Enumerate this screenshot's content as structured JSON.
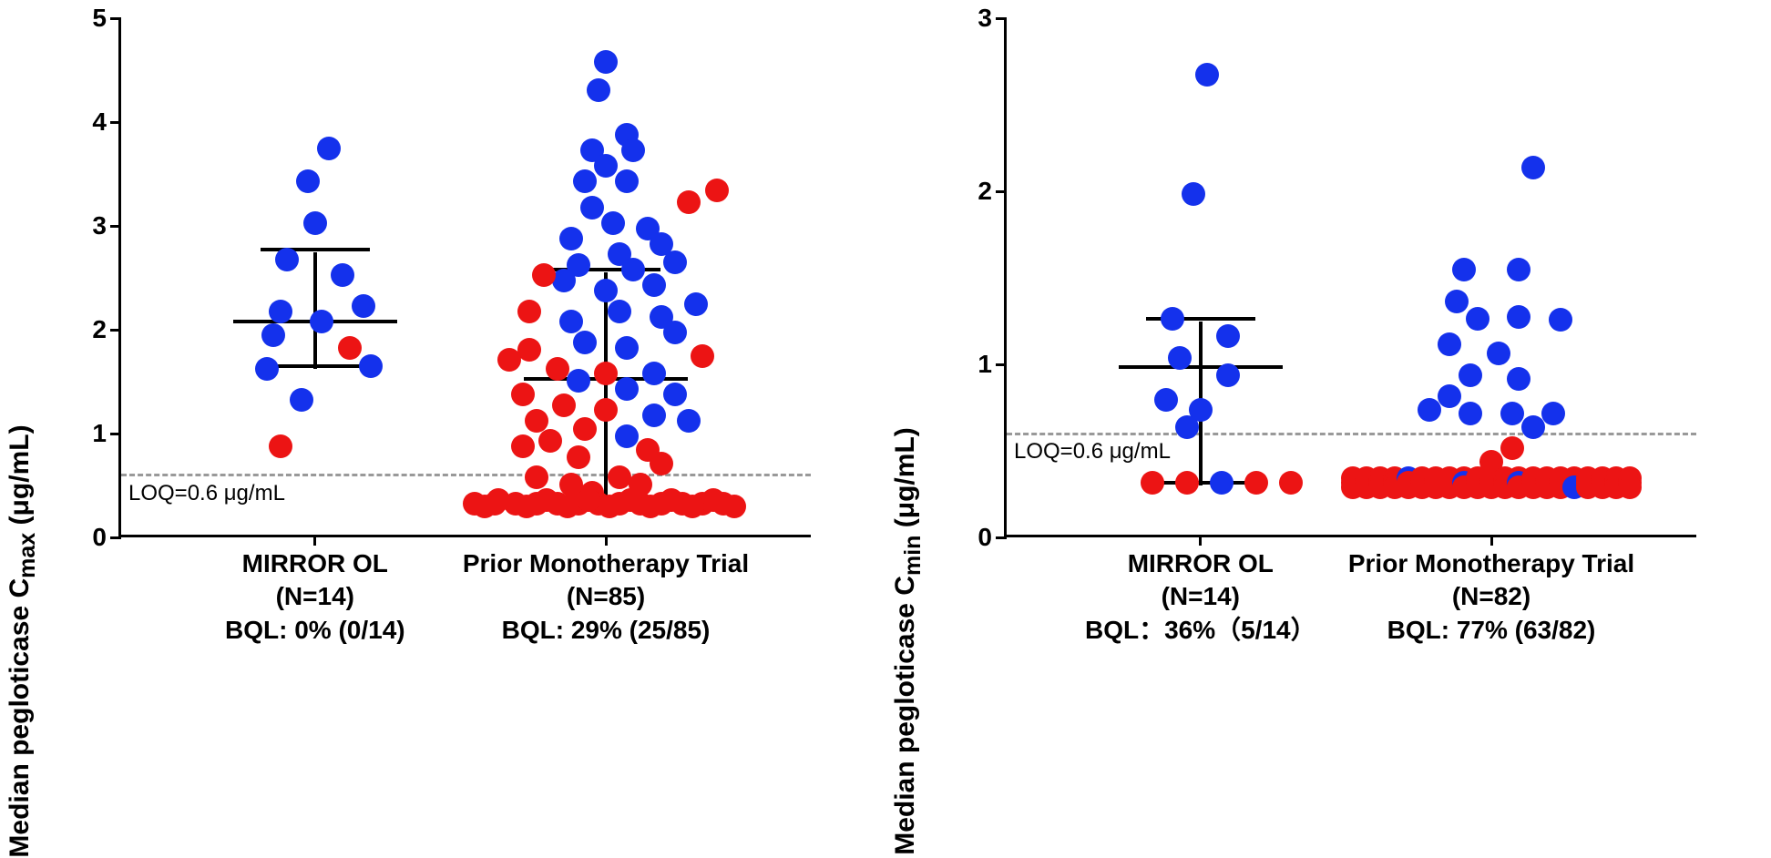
{
  "colors": {
    "blue": "#1431ec",
    "red": "#ec1414",
    "axis": "#000000",
    "loq": "#999999",
    "bg": "#ffffff"
  },
  "marker": {
    "radius": 13,
    "stroke": 0
  },
  "errbar": {
    "cap_width": 120,
    "median_width": 180,
    "line_width": 4
  },
  "left_panel": {
    "ylabel_html": "Median pegloticase C<sub>max</sub> (μg/mL)",
    "ylim": [
      0,
      5
    ],
    "yticks": [
      0,
      1,
      2,
      3,
      4,
      5
    ],
    "loq": {
      "value": 0.6,
      "label": "LOQ=0.6 μg/mL"
    },
    "groups": [
      {
        "x": 0.28,
        "label_lines": [
          "MIRROR OL",
          "(N=14)",
          "BQL: 0% (0/14)"
        ],
        "median": 2.05,
        "q1": 1.62,
        "q3": 2.75,
        "points": [
          {
            "dx": 0.02,
            "y": 3.72,
            "c": "blue"
          },
          {
            "dx": -0.01,
            "y": 3.4,
            "c": "blue"
          },
          {
            "dx": 0.0,
            "y": 3.0,
            "c": "blue"
          },
          {
            "dx": -0.04,
            "y": 2.65,
            "c": "blue"
          },
          {
            "dx": 0.04,
            "y": 2.5,
            "c": "blue"
          },
          {
            "dx": 0.07,
            "y": 2.2,
            "c": "blue"
          },
          {
            "dx": -0.05,
            "y": 2.15,
            "c": "blue"
          },
          {
            "dx": 0.01,
            "y": 2.05,
            "c": "blue"
          },
          {
            "dx": -0.06,
            "y": 1.92,
            "c": "blue"
          },
          {
            "dx": 0.05,
            "y": 1.8,
            "c": "red"
          },
          {
            "dx": 0.08,
            "y": 1.62,
            "c": "blue"
          },
          {
            "dx": -0.07,
            "y": 1.6,
            "c": "blue"
          },
          {
            "dx": -0.02,
            "y": 1.3,
            "c": "blue"
          },
          {
            "dx": -0.05,
            "y": 0.85,
            "c": "red"
          }
        ]
      },
      {
        "x": 0.7,
        "label_lines": [
          "Prior Monotherapy Trial",
          "(N=85)",
          "BQL: 29% (25/85)"
        ],
        "median": 1.5,
        "q1": 0.3,
        "q3": 2.55,
        "points": [
          {
            "dx": 0.0,
            "y": 4.55,
            "c": "blue"
          },
          {
            "dx": -0.01,
            "y": 4.28,
            "c": "blue"
          },
          {
            "dx": 0.03,
            "y": 3.85,
            "c": "blue"
          },
          {
            "dx": -0.02,
            "y": 3.7,
            "c": "blue"
          },
          {
            "dx": 0.04,
            "y": 3.7,
            "c": "blue"
          },
          {
            "dx": 0.0,
            "y": 3.55,
            "c": "blue"
          },
          {
            "dx": -0.03,
            "y": 3.4,
            "c": "blue"
          },
          {
            "dx": 0.03,
            "y": 3.4,
            "c": "blue"
          },
          {
            "dx": 0.16,
            "y": 3.32,
            "c": "red"
          },
          {
            "dx": -0.02,
            "y": 3.15,
            "c": "blue"
          },
          {
            "dx": 0.12,
            "y": 3.2,
            "c": "red"
          },
          {
            "dx": 0.01,
            "y": 3.0,
            "c": "blue"
          },
          {
            "dx": 0.06,
            "y": 2.95,
            "c": "blue"
          },
          {
            "dx": -0.05,
            "y": 2.85,
            "c": "blue"
          },
          {
            "dx": 0.08,
            "y": 2.8,
            "c": "blue"
          },
          {
            "dx": 0.02,
            "y": 2.7,
            "c": "blue"
          },
          {
            "dx": -0.04,
            "y": 2.6,
            "c": "blue"
          },
          {
            "dx": 0.1,
            "y": 2.62,
            "c": "blue"
          },
          {
            "dx": 0.04,
            "y": 2.55,
            "c": "blue"
          },
          {
            "dx": -0.06,
            "y": 2.45,
            "c": "blue"
          },
          {
            "dx": -0.09,
            "y": 2.5,
            "c": "red"
          },
          {
            "dx": 0.07,
            "y": 2.4,
            "c": "blue"
          },
          {
            "dx": 0.0,
            "y": 2.35,
            "c": "blue"
          },
          {
            "dx": -0.11,
            "y": 2.15,
            "c": "red"
          },
          {
            "dx": 0.13,
            "y": 2.22,
            "c": "blue"
          },
          {
            "dx": 0.02,
            "y": 2.15,
            "c": "blue"
          },
          {
            "dx": -0.05,
            "y": 2.05,
            "c": "blue"
          },
          {
            "dx": 0.08,
            "y": 2.1,
            "c": "blue"
          },
          {
            "dx": 0.1,
            "y": 1.95,
            "c": "blue"
          },
          {
            "dx": -0.03,
            "y": 1.85,
            "c": "blue"
          },
          {
            "dx": -0.11,
            "y": 1.78,
            "c": "red"
          },
          {
            "dx": 0.03,
            "y": 1.8,
            "c": "blue"
          },
          {
            "dx": -0.14,
            "y": 1.68,
            "c": "red"
          },
          {
            "dx": 0.14,
            "y": 1.72,
            "c": "red"
          },
          {
            "dx": -0.07,
            "y": 1.6,
            "c": "red"
          },
          {
            "dx": 0.0,
            "y": 1.55,
            "c": "red"
          },
          {
            "dx": 0.07,
            "y": 1.55,
            "c": "blue"
          },
          {
            "dx": -0.04,
            "y": 1.48,
            "c": "blue"
          },
          {
            "dx": -0.12,
            "y": 1.35,
            "c": "red"
          },
          {
            "dx": 0.03,
            "y": 1.4,
            "c": "blue"
          },
          {
            "dx": 0.1,
            "y": 1.35,
            "c": "blue"
          },
          {
            "dx": -0.06,
            "y": 1.25,
            "c": "red"
          },
          {
            "dx": 0.0,
            "y": 1.2,
            "c": "red"
          },
          {
            "dx": -0.1,
            "y": 1.1,
            "c": "red"
          },
          {
            "dx": 0.07,
            "y": 1.15,
            "c": "blue"
          },
          {
            "dx": 0.12,
            "y": 1.1,
            "c": "blue"
          },
          {
            "dx": -0.03,
            "y": 1.02,
            "c": "red"
          },
          {
            "dx": 0.03,
            "y": 0.95,
            "c": "blue"
          },
          {
            "dx": -0.08,
            "y": 0.9,
            "c": "red"
          },
          {
            "dx": -0.12,
            "y": 0.85,
            "c": "red"
          },
          {
            "dx": 0.06,
            "y": 0.82,
            "c": "red"
          },
          {
            "dx": -0.04,
            "y": 0.75,
            "c": "red"
          },
          {
            "dx": 0.08,
            "y": 0.68,
            "c": "red"
          },
          {
            "dx": -0.1,
            "y": 0.55,
            "c": "red"
          },
          {
            "dx": 0.02,
            "y": 0.55,
            "c": "red"
          },
          {
            "dx": -0.05,
            "y": 0.48,
            "c": "red"
          },
          {
            "dx": 0.05,
            "y": 0.48,
            "c": "red"
          },
          {
            "dx": -0.02,
            "y": 0.4,
            "c": "red"
          },
          {
            "dx": -0.16,
            "y": 0.3,
            "c": "red"
          },
          {
            "dx": -0.13,
            "y": 0.3,
            "c": "red"
          },
          {
            "dx": -0.1,
            "y": 0.3,
            "c": "red"
          },
          {
            "dx": -0.07,
            "y": 0.3,
            "c": "red"
          },
          {
            "dx": -0.04,
            "y": 0.3,
            "c": "red"
          },
          {
            "dx": -0.01,
            "y": 0.3,
            "c": "red"
          },
          {
            "dx": 0.02,
            "y": 0.3,
            "c": "red"
          },
          {
            "dx": 0.05,
            "y": 0.3,
            "c": "red"
          },
          {
            "dx": 0.08,
            "y": 0.3,
            "c": "red"
          },
          {
            "dx": 0.11,
            "y": 0.3,
            "c": "red"
          },
          {
            "dx": 0.14,
            "y": 0.3,
            "c": "red"
          },
          {
            "dx": 0.17,
            "y": 0.3,
            "c": "red"
          },
          {
            "dx": -0.19,
            "y": 0.3,
            "c": "red"
          },
          {
            "dx": -0.155,
            "y": 0.33,
            "c": "red"
          },
          {
            "dx": -0.085,
            "y": 0.33,
            "c": "red"
          },
          {
            "dx": -0.025,
            "y": 0.33,
            "c": "red"
          },
          {
            "dx": 0.035,
            "y": 0.33,
            "c": "red"
          },
          {
            "dx": 0.095,
            "y": 0.33,
            "c": "red"
          },
          {
            "dx": 0.155,
            "y": 0.33,
            "c": "red"
          },
          {
            "dx": -0.115,
            "y": 0.27,
            "c": "red"
          },
          {
            "dx": -0.055,
            "y": 0.27,
            "c": "red"
          },
          {
            "dx": 0.005,
            "y": 0.27,
            "c": "red"
          },
          {
            "dx": 0.065,
            "y": 0.27,
            "c": "red"
          },
          {
            "dx": 0.125,
            "y": 0.27,
            "c": "red"
          },
          {
            "dx": 0.185,
            "y": 0.27,
            "c": "red"
          },
          {
            "dx": -0.175,
            "y": 0.27,
            "c": "red"
          }
        ]
      }
    ]
  },
  "right_panel": {
    "ylabel_html": "Median pegloticase C<sub>min</sub> (μg/mL)",
    "ylim": [
      0,
      3
    ],
    "yticks": [
      0,
      1,
      2,
      3
    ],
    "loq": {
      "value": 0.6,
      "label": "LOQ=0.6 μg/mL"
    },
    "groups": [
      {
        "x": 0.28,
        "label_lines": [
          "MIRROR OL",
          "(N=14)",
          "BQL：36%（5/14）"
        ],
        "median": 0.97,
        "q1": 0.3,
        "q3": 1.25,
        "points": [
          {
            "dx": 0.01,
            "y": 2.66,
            "c": "blue"
          },
          {
            "dx": -0.01,
            "y": 1.97,
            "c": "blue"
          },
          {
            "dx": -0.04,
            "y": 1.25,
            "c": "blue"
          },
          {
            "dx": 0.04,
            "y": 1.15,
            "c": "blue"
          },
          {
            "dx": -0.03,
            "y": 1.02,
            "c": "blue"
          },
          {
            "dx": 0.04,
            "y": 0.92,
            "c": "blue"
          },
          {
            "dx": -0.05,
            "y": 0.78,
            "c": "blue"
          },
          {
            "dx": 0.0,
            "y": 0.72,
            "c": "blue"
          },
          {
            "dx": -0.02,
            "y": 0.62,
            "c": "blue"
          },
          {
            "dx": -0.07,
            "y": 0.3,
            "c": "red"
          },
          {
            "dx": -0.02,
            "y": 0.3,
            "c": "red"
          },
          {
            "dx": 0.03,
            "y": 0.3,
            "c": "blue"
          },
          {
            "dx": 0.08,
            "y": 0.3,
            "c": "red"
          },
          {
            "dx": 0.13,
            "y": 0.3,
            "c": "red"
          }
        ]
      },
      {
        "x": 0.7,
        "label_lines": [
          "Prior Monotherapy Trial",
          "(N=82)",
          "BQL: 77% (63/82)"
        ],
        "median": 0.3,
        "q1": 0.3,
        "q3": 0.3,
        "points": [
          {
            "dx": 0.06,
            "y": 2.12,
            "c": "blue"
          },
          {
            "dx": -0.04,
            "y": 1.53,
            "c": "blue"
          },
          {
            "dx": 0.04,
            "y": 1.53,
            "c": "blue"
          },
          {
            "dx": -0.05,
            "y": 1.35,
            "c": "blue"
          },
          {
            "dx": -0.02,
            "y": 1.25,
            "c": "blue"
          },
          {
            "dx": 0.04,
            "y": 1.26,
            "c": "blue"
          },
          {
            "dx": 0.1,
            "y": 1.24,
            "c": "blue"
          },
          {
            "dx": -0.06,
            "y": 1.1,
            "c": "blue"
          },
          {
            "dx": 0.01,
            "y": 1.05,
            "c": "blue"
          },
          {
            "dx": -0.03,
            "y": 0.92,
            "c": "blue"
          },
          {
            "dx": 0.04,
            "y": 0.9,
            "c": "blue"
          },
          {
            "dx": -0.06,
            "y": 0.8,
            "c": "blue"
          },
          {
            "dx": -0.09,
            "y": 0.72,
            "c": "blue"
          },
          {
            "dx": -0.03,
            "y": 0.7,
            "c": "blue"
          },
          {
            "dx": 0.03,
            "y": 0.7,
            "c": "blue"
          },
          {
            "dx": 0.09,
            "y": 0.7,
            "c": "blue"
          },
          {
            "dx": 0.06,
            "y": 0.62,
            "c": "blue"
          },
          {
            "dx": 0.03,
            "y": 0.5,
            "c": "red"
          },
          {
            "dx": 0.0,
            "y": 0.42,
            "c": "red"
          }
        ],
        "bql_row": {
          "y": 0.3,
          "count_red": 59,
          "count_blue": 4,
          "spread": 0.4
        }
      }
    ]
  }
}
